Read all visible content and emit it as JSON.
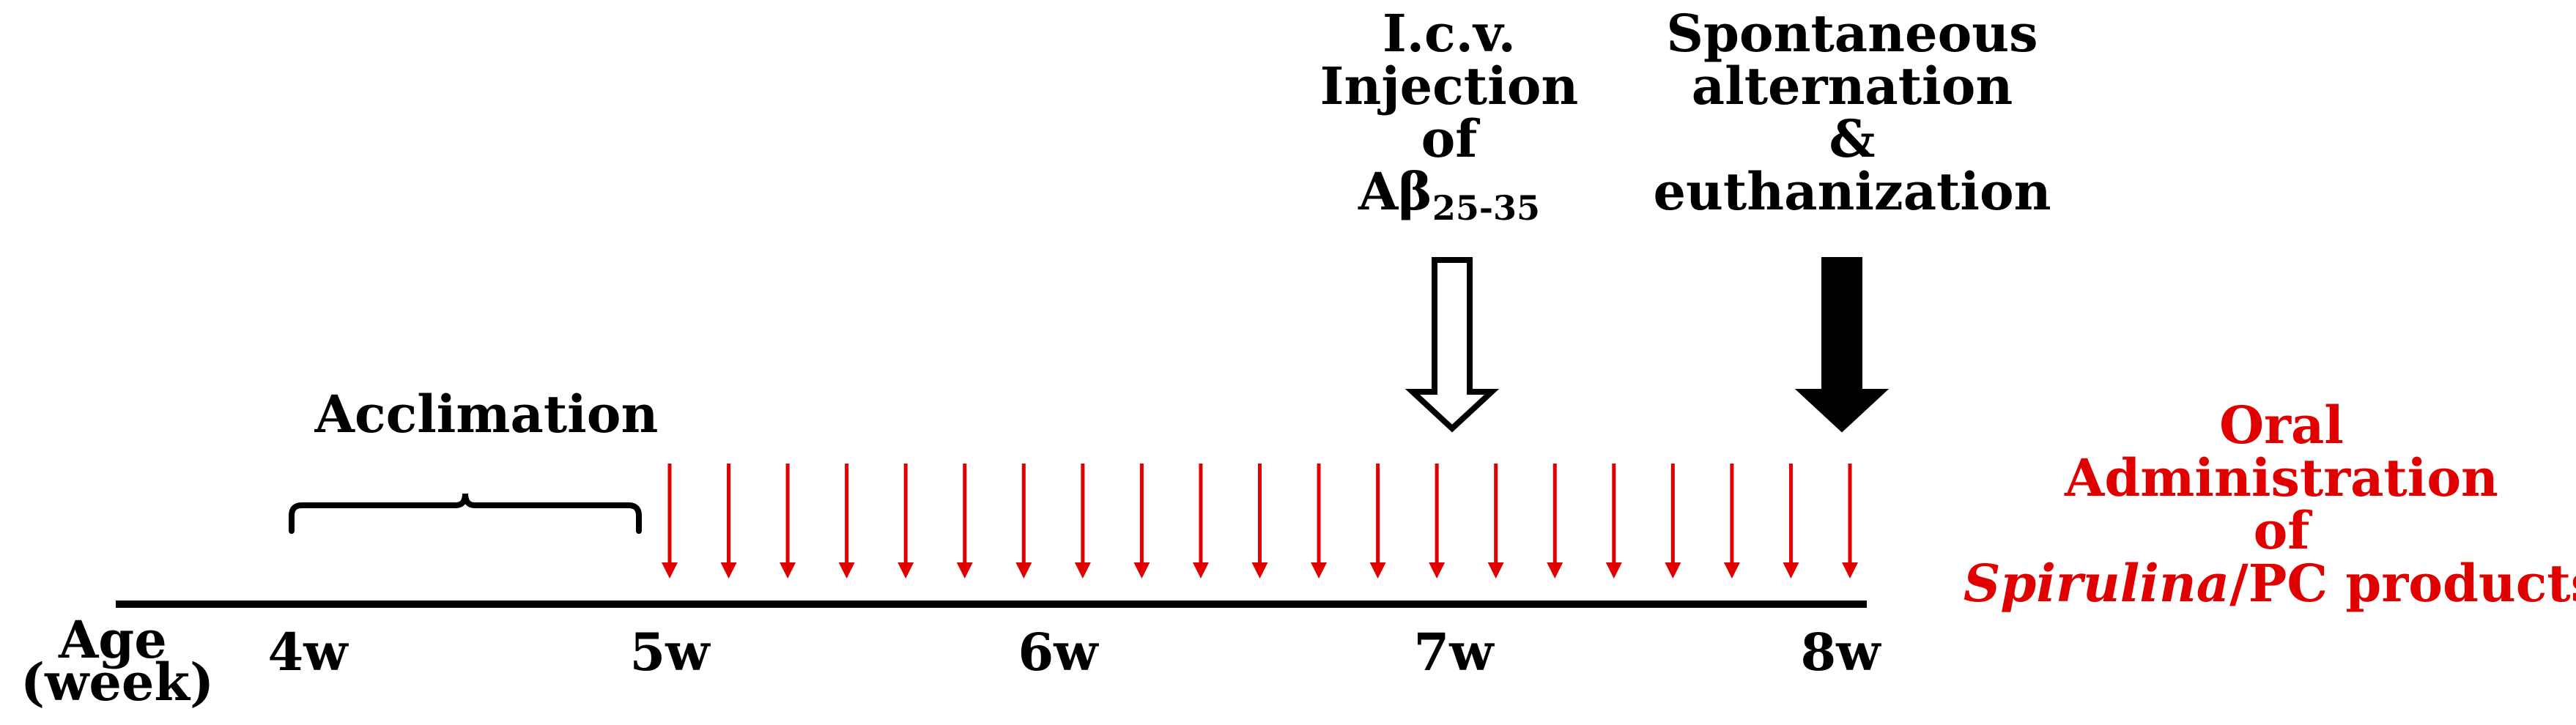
{
  "title": "",
  "timeline": {
    "axis_label_line1": "Age",
    "axis_label_line2": "(week)",
    "ticks": [
      "4w",
      "5w",
      "6w",
      "7w",
      "8w"
    ],
    "daily_doses": 21,
    "dose_color": "#e00000"
  },
  "phases": {
    "acclimation_label": "Acclimation"
  },
  "events": {
    "injection": {
      "line1": "I.c.v.",
      "line2": "Injection",
      "line3": "of",
      "line4_main": "Aβ",
      "line4_sub": "25-35",
      "arrow_style": "hollow"
    },
    "endpoint": {
      "line1": "Spontaneous",
      "line2": "alternation",
      "line3": "&",
      "line4": "euthanization",
      "arrow_style": "filled"
    }
  },
  "treatment": {
    "line1": "Oral",
    "line2": "Administration",
    "line3": "of",
    "line4_italic": "Spirulina",
    "line4_rest": "/PC products",
    "color": "#e00000"
  }
}
